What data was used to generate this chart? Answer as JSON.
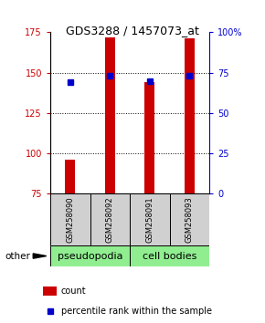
{
  "title": "GDS3288 / 1457073_at",
  "samples": [
    "GSM258090",
    "GSM258092",
    "GSM258091",
    "GSM258093"
  ],
  "groups": [
    "pseudopodia",
    "pseudopodia",
    "cell bodies",
    "cell bodies"
  ],
  "count_values": [
    96,
    172,
    144,
    171
  ],
  "percentile_values": [
    69,
    73,
    70,
    73
  ],
  "ymin": 75,
  "ymax": 175,
  "yticks_left": [
    75,
    100,
    125,
    150,
    175
  ],
  "yticks_right_vals": [
    0,
    25,
    50,
    75,
    100
  ],
  "bar_color": "#cc0000",
  "dot_color": "#0000cc",
  "pseudopodia_color": "#90ee90",
  "cell_bodies_color": "#90ee90",
  "left_tick_color": "#cc0000",
  "right_tick_color": "#0000cc",
  "bar_width": 0.25,
  "title_fontsize": 9,
  "tick_fontsize": 7,
  "sample_fontsize": 6,
  "group_fontsize": 8,
  "legend_fontsize": 7
}
